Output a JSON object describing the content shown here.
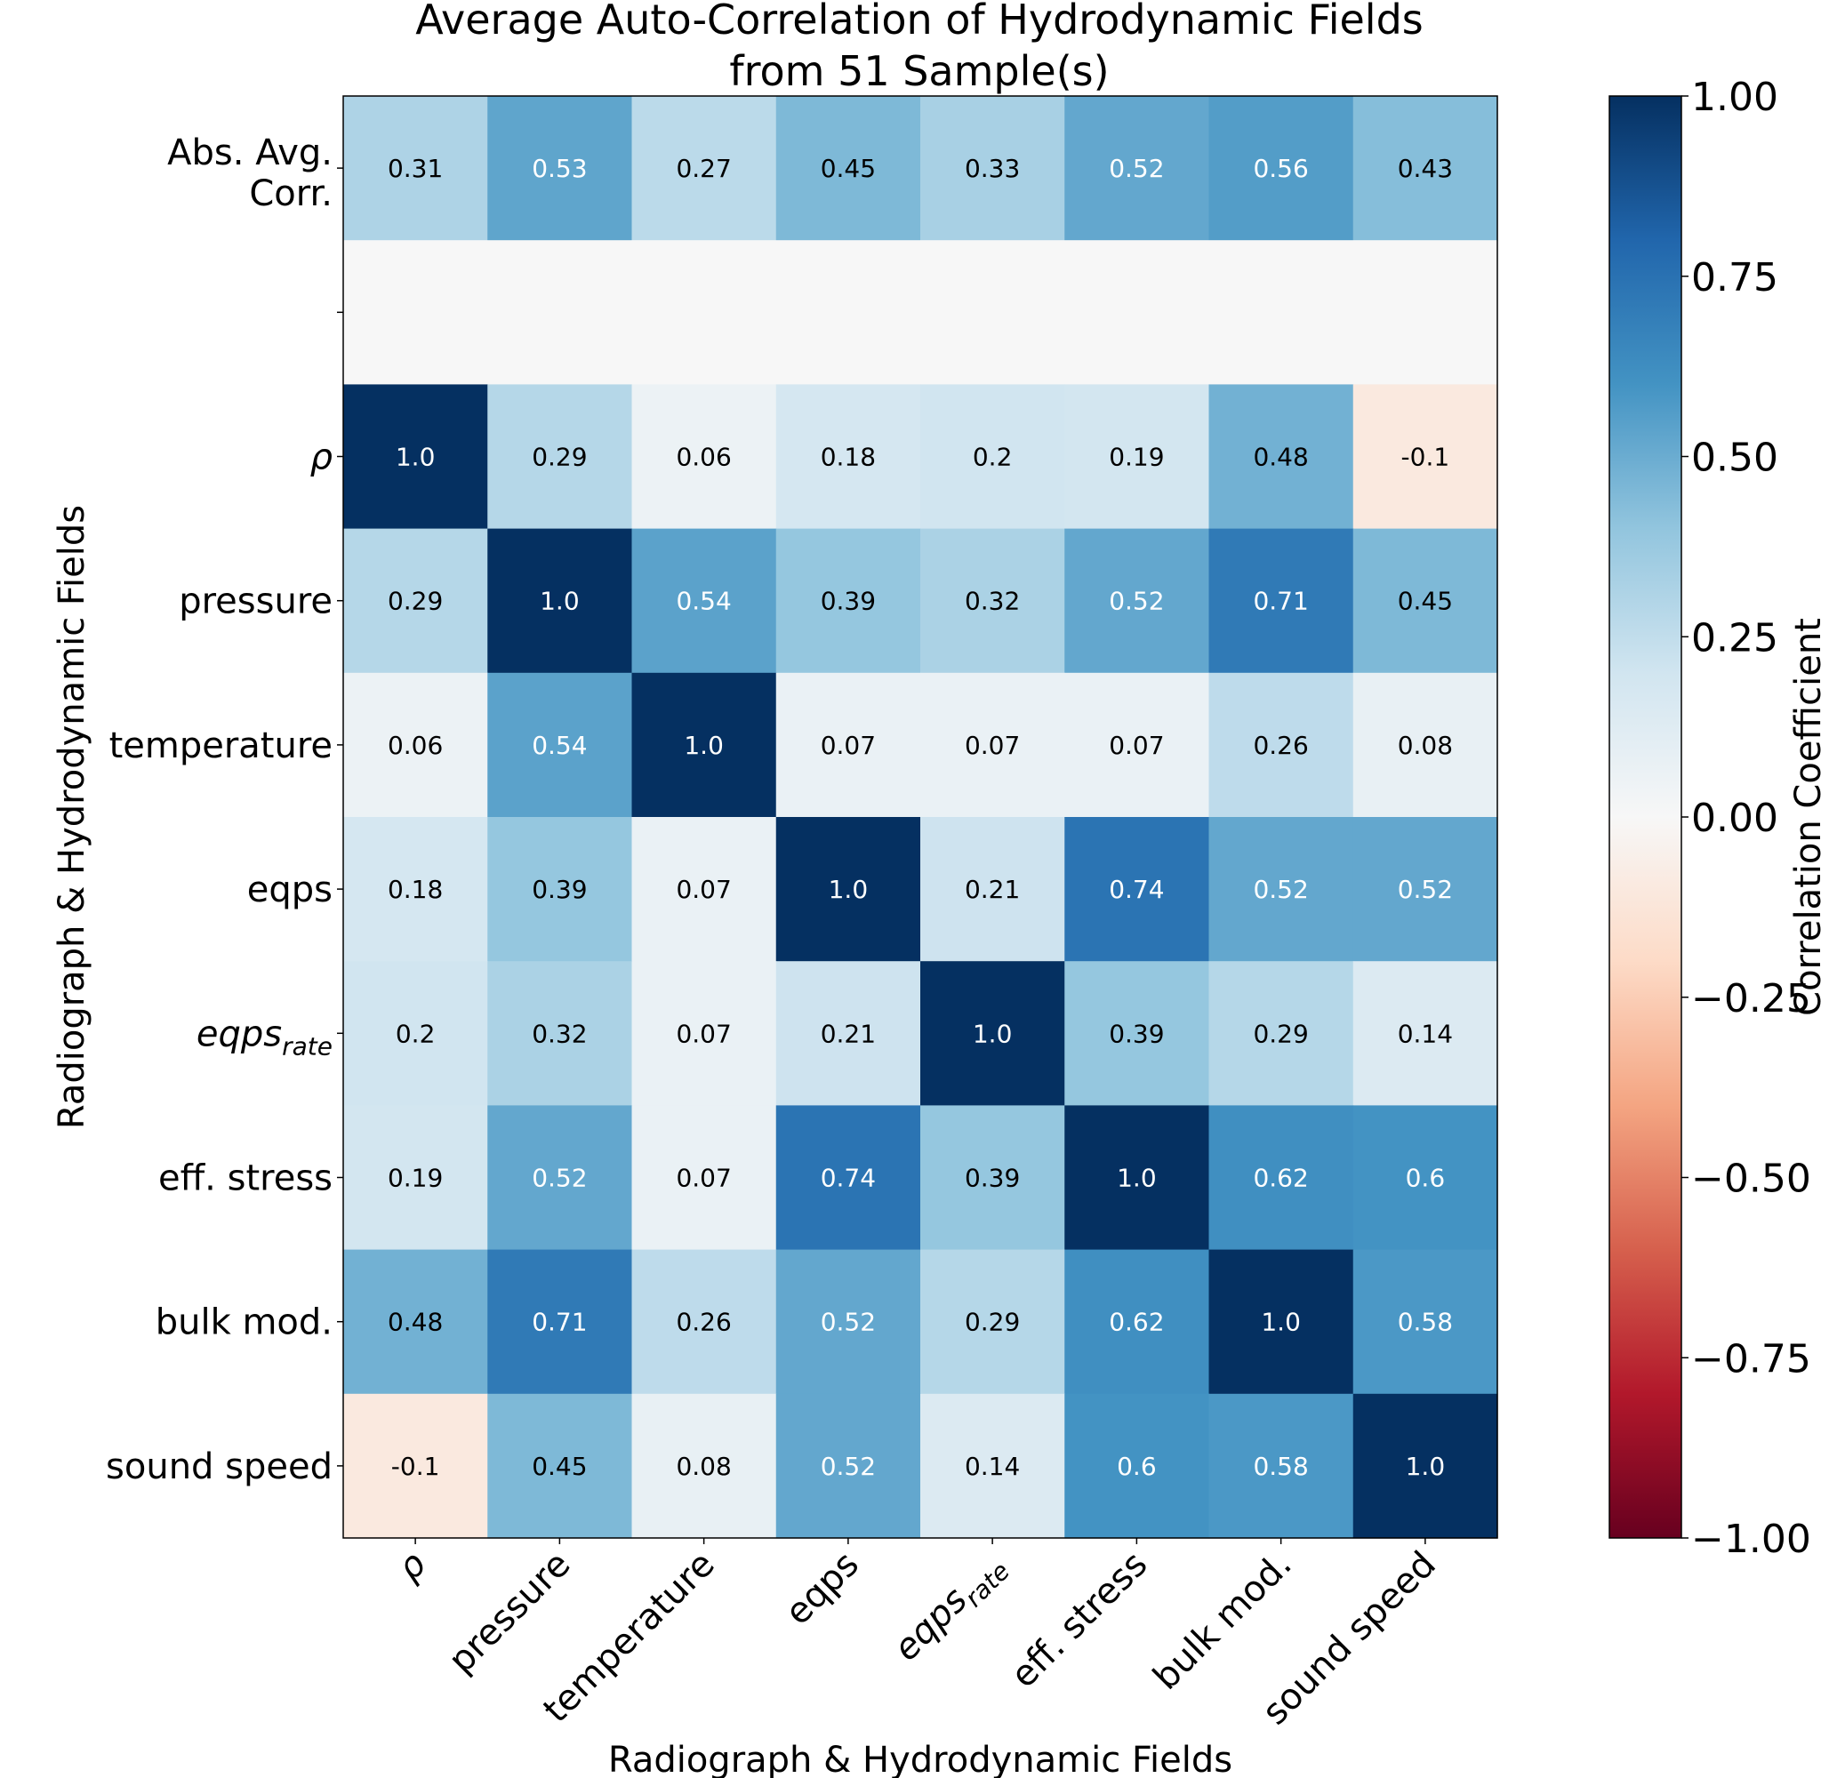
{
  "chart_data": {
    "type": "heatmap",
    "title_line1": "Average Auto-Correlation of Hydrodynamic Fields",
    "title_line2": "from 51 Sample(s)",
    "xlabel": "Radiograph & Hydrodynamic Fields",
    "ylabel": "Radiograph & Hydrodynamic Fields",
    "colorbar_label": "Correlation Coefficient",
    "colorbar_range": [
      -1.0,
      1.0
    ],
    "colorbar_ticks": [
      "1.00",
      "0.75",
      "0.50",
      "0.25",
      "0.00",
      "−0.25",
      "−0.50",
      "−0.75",
      "−1.00"
    ],
    "colormap": "RdBu",
    "columns": [
      {
        "main": "ρ",
        "sub": ""
      },
      {
        "main": "pressure",
        "sub": ""
      },
      {
        "main": "temperature",
        "sub": ""
      },
      {
        "main": "eqps",
        "sub": ""
      },
      {
        "main": "eqps",
        "sub": "rate"
      },
      {
        "main": "eff. stress",
        "sub": ""
      },
      {
        "main": "bulk mod.",
        "sub": ""
      },
      {
        "main": "sound speed",
        "sub": ""
      }
    ],
    "rows": [
      {
        "line1": "Abs. Avg.",
        "line2": "Corr.",
        "sub": "",
        "values": [
          0.31,
          0.53,
          0.27,
          0.45,
          0.33,
          0.52,
          0.56,
          0.43
        ],
        "labels": [
          "0.31",
          "0.53",
          "0.27",
          "0.45",
          "0.33",
          "0.52",
          "0.56",
          "0.43"
        ]
      },
      {
        "line1": "",
        "line2": "",
        "sub": "",
        "values": null,
        "labels": null
      },
      {
        "line1": "ρ",
        "line2": "",
        "sub": "",
        "values": [
          1.0,
          0.29,
          0.06,
          0.18,
          0.2,
          0.19,
          0.48,
          -0.1
        ],
        "labels": [
          "1.0",
          "0.29",
          "0.06",
          "0.18",
          "0.2",
          "0.19",
          "0.48",
          "-0.1"
        ]
      },
      {
        "line1": "pressure",
        "line2": "",
        "sub": "",
        "values": [
          0.29,
          1.0,
          0.54,
          0.39,
          0.32,
          0.52,
          0.71,
          0.45
        ],
        "labels": [
          "0.29",
          "1.0",
          "0.54",
          "0.39",
          "0.32",
          "0.52",
          "0.71",
          "0.45"
        ]
      },
      {
        "line1": "temperature",
        "line2": "",
        "sub": "",
        "values": [
          0.06,
          0.54,
          1.0,
          0.07,
          0.07,
          0.07,
          0.26,
          0.08
        ],
        "labels": [
          "0.06",
          "0.54",
          "1.0",
          "0.07",
          "0.07",
          "0.07",
          "0.26",
          "0.08"
        ]
      },
      {
        "line1": "eqps",
        "line2": "",
        "sub": "",
        "values": [
          0.18,
          0.39,
          0.07,
          1.0,
          0.21,
          0.74,
          0.52,
          0.52
        ],
        "labels": [
          "0.18",
          "0.39",
          "0.07",
          "1.0",
          "0.21",
          "0.74",
          "0.52",
          "0.52"
        ]
      },
      {
        "line1": "eqps",
        "line2": "",
        "sub": "rate",
        "values": [
          0.2,
          0.32,
          0.07,
          0.21,
          1.0,
          0.39,
          0.29,
          0.14
        ],
        "labels": [
          "0.2",
          "0.32",
          "0.07",
          "0.21",
          "1.0",
          "0.39",
          "0.29",
          "0.14"
        ]
      },
      {
        "line1": "eff. stress",
        "line2": "",
        "sub": "",
        "values": [
          0.19,
          0.52,
          0.07,
          0.74,
          0.39,
          1.0,
          0.62,
          0.6
        ],
        "labels": [
          "0.19",
          "0.52",
          "0.07",
          "0.74",
          "0.39",
          "1.0",
          "0.62",
          "0.6"
        ]
      },
      {
        "line1": "bulk mod.",
        "line2": "",
        "sub": "",
        "values": [
          0.48,
          0.71,
          0.26,
          0.52,
          0.29,
          0.62,
          1.0,
          0.58
        ],
        "labels": [
          "0.48",
          "0.71",
          "0.26",
          "0.52",
          "0.29",
          "0.62",
          "1.0",
          "0.58"
        ]
      },
      {
        "line1": "sound speed",
        "line2": "",
        "sub": "",
        "values": [
          -0.1,
          0.45,
          0.08,
          0.52,
          0.14,
          0.6,
          0.58,
          1.0
        ],
        "labels": [
          "-0.1",
          "0.45",
          "0.08",
          "0.52",
          "0.14",
          "0.6",
          "0.58",
          "1.0"
        ]
      }
    ]
  }
}
